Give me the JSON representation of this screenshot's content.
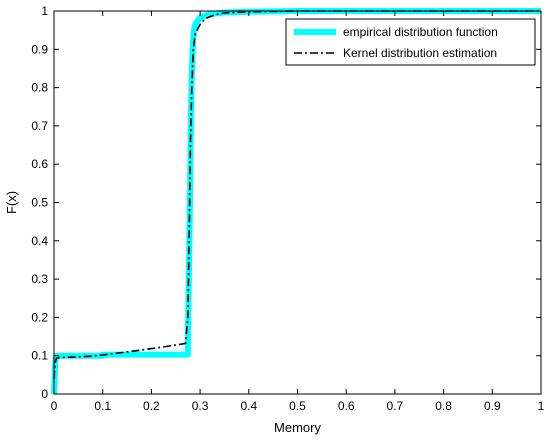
{
  "chart_data": {
    "type": "line",
    "xlabel": "Memory",
    "ylabel": "F(x)",
    "xlim": [
      0,
      1
    ],
    "ylim": [
      0,
      1
    ],
    "x_ticks": [
      "0",
      "0.1",
      "0.2",
      "0.3",
      "0.4",
      "0.5",
      "0.6",
      "0.7",
      "0.8",
      "0.9",
      "1"
    ],
    "y_ticks": [
      "0",
      "0.1",
      "0.2",
      "0.3",
      "0.4",
      "0.5",
      "0.6",
      "0.7",
      "0.8",
      "0.9",
      "1"
    ],
    "grid": false,
    "legend_position": "top-right",
    "series": [
      {
        "name": "empirical distribution function",
        "color": "#00ffff",
        "style": "solid",
        "x": [
          0,
          0.003,
          0.005,
          0.1,
          0.1,
          0.275,
          0.275,
          0.278,
          0.28,
          0.282,
          0.284,
          0.286,
          0.288,
          0.29,
          0.295,
          0.3,
          0.31,
          0.32,
          0.35,
          0.4,
          0.5,
          1.0
        ],
        "y": [
          0,
          0.09,
          0.1,
          0.1,
          0.103,
          0.103,
          0.15,
          0.4,
          0.6,
          0.78,
          0.88,
          0.93,
          0.955,
          0.965,
          0.975,
          0.982,
          0.988,
          0.992,
          0.996,
          0.998,
          1.0,
          1.0
        ]
      },
      {
        "name": "Kernel distribution estimation",
        "color": "#000000",
        "style": "dash-dot",
        "x": [
          0,
          0.002,
          0.005,
          0.01,
          0.03,
          0.08,
          0.12,
          0.18,
          0.22,
          0.25,
          0.27,
          0.275,
          0.278,
          0.28,
          0.283,
          0.286,
          0.29,
          0.3,
          0.31,
          0.33,
          0.35,
          0.4,
          0.5,
          1.0
        ],
        "y": [
          0.04,
          0.08,
          0.093,
          0.095,
          0.096,
          0.099,
          0.105,
          0.115,
          0.122,
          0.128,
          0.132,
          0.2,
          0.45,
          0.65,
          0.8,
          0.9,
          0.94,
          0.965,
          0.98,
          0.99,
          0.995,
          0.998,
          1.0,
          1.0
        ]
      }
    ]
  }
}
